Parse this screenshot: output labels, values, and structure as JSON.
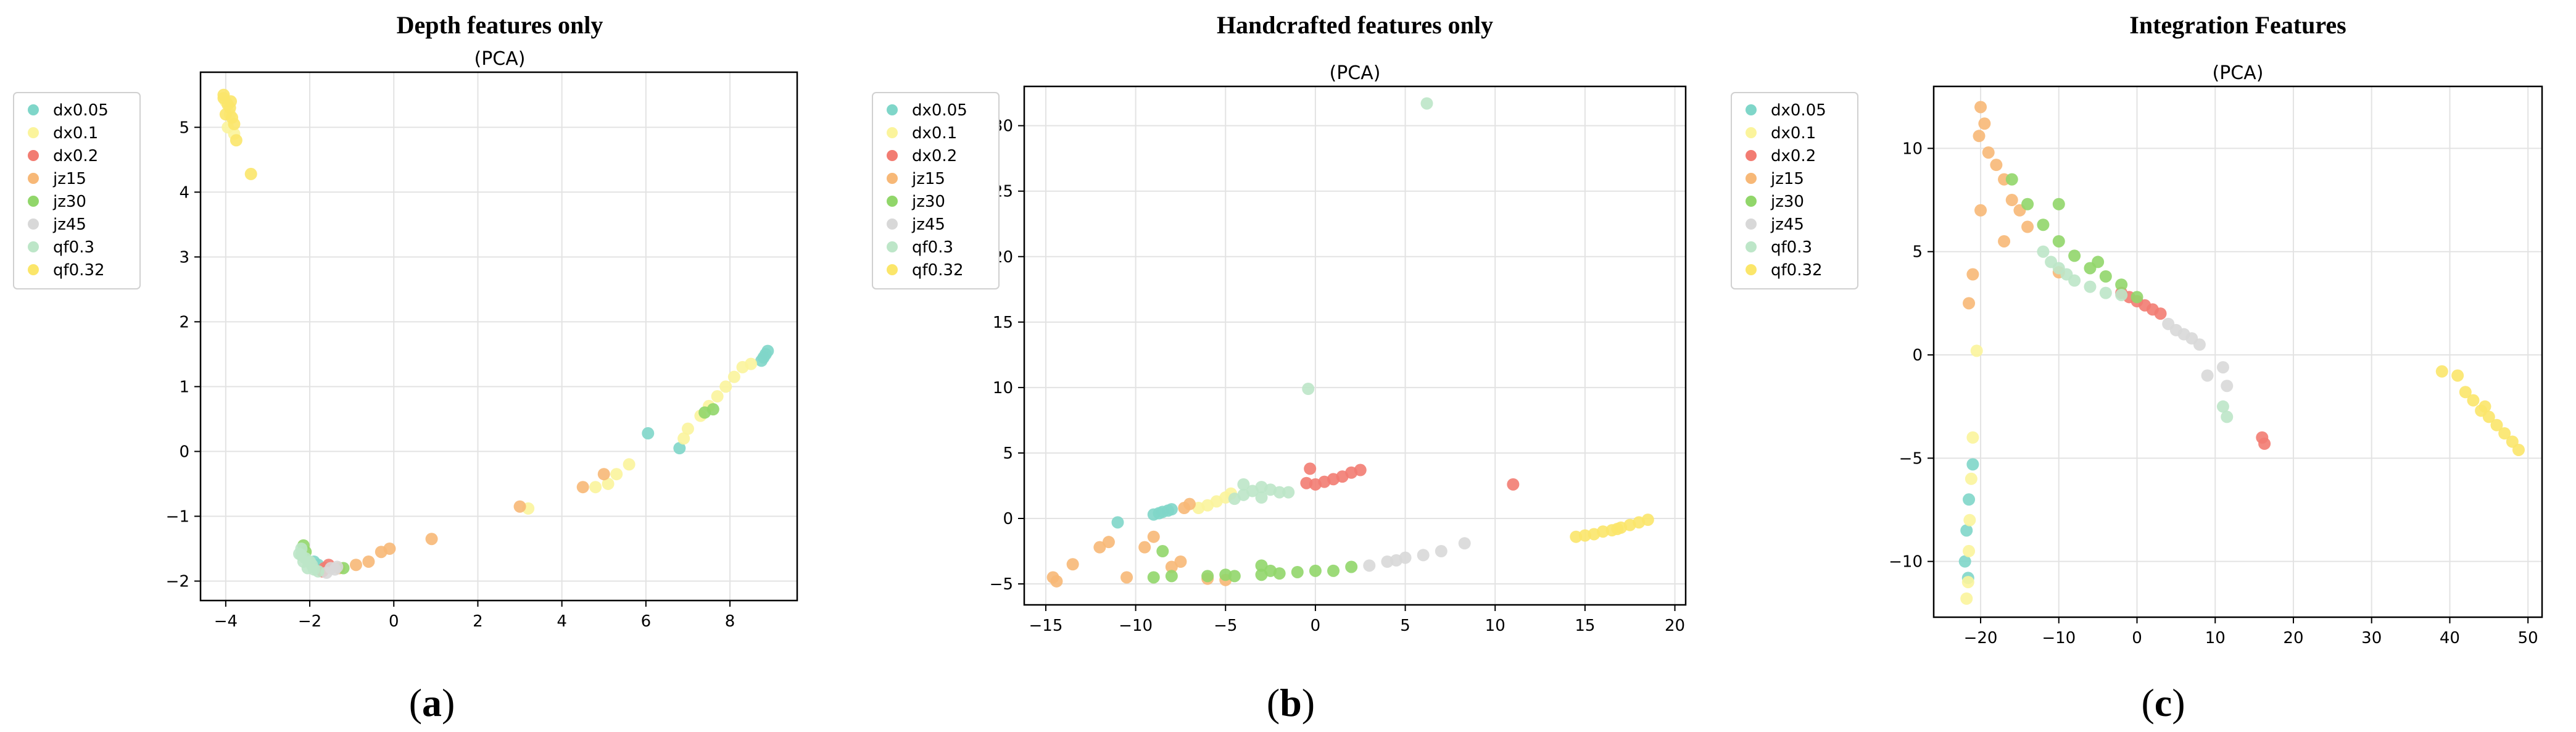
{
  "chart_data": [
    {
      "type": "scatter",
      "title": "Depth features only",
      "subtitle": "(PCA)",
      "caption": "a",
      "legend_placement": "outside-left",
      "grid": true,
      "xlim": [
        -4.6,
        9.6
      ],
      "ylim": [
        -2.3,
        5.85
      ],
      "xticks": [
        -4,
        -2,
        0,
        2,
        4,
        6,
        8
      ],
      "yticks": [
        -2,
        -1,
        0,
        1,
        2,
        3,
        4,
        5
      ],
      "series": [
        {
          "name": "dx0.05",
          "color": "#7fd6c9",
          "points": [
            [
              8.85,
              1.5
            ],
            [
              8.8,
              1.45
            ],
            [
              8.9,
              1.55
            ],
            [
              8.75,
              1.4
            ],
            [
              6.05,
              0.28
            ],
            [
              6.8,
              0.05
            ],
            [
              -1.9,
              -1.7
            ],
            [
              -1.8,
              -1.75
            ]
          ]
        },
        {
          "name": "dx0.1",
          "color": "#fbf49c",
          "points": [
            [
              7.3,
              0.55
            ],
            [
              7.5,
              0.7
            ],
            [
              7.7,
              0.85
            ],
            [
              7.9,
              1.0
            ],
            [
              8.1,
              1.15
            ],
            [
              8.3,
              1.3
            ],
            [
              8.5,
              1.35
            ],
            [
              7.0,
              0.35
            ],
            [
              6.9,
              0.2
            ],
            [
              5.6,
              -0.2
            ],
            [
              5.3,
              -0.35
            ],
            [
              5.1,
              -0.5
            ],
            [
              4.8,
              -0.55
            ],
            [
              3.2,
              -0.88
            ],
            [
              -4.0,
              5.4
            ],
            [
              -3.9,
              5.2
            ],
            [
              -3.95,
              5.0
            ],
            [
              -3.8,
              4.9
            ]
          ]
        },
        {
          "name": "dx0.2",
          "color": "#f27c72",
          "points": [
            [
              -1.65,
              -1.8
            ],
            [
              -1.55,
              -1.75
            ],
            [
              -1.7,
              -1.85
            ]
          ]
        },
        {
          "name": "jz15",
          "color": "#f7b877",
          "points": [
            [
              -0.1,
              -1.5
            ],
            [
              -0.3,
              -1.55
            ],
            [
              0.9,
              -1.35
            ],
            [
              3.0,
              -0.85
            ],
            [
              4.5,
              -0.55
            ],
            [
              5.0,
              -0.35
            ],
            [
              -0.6,
              -1.7
            ],
            [
              -0.9,
              -1.75
            ],
            [
              -1.3,
              -1.8
            ]
          ]
        },
        {
          "name": "jz30",
          "color": "#91d66a",
          "points": [
            [
              -2.15,
              -1.45
            ],
            [
              -2.1,
              -1.55
            ],
            [
              -1.2,
              -1.8
            ],
            [
              7.4,
              0.6
            ],
            [
              7.6,
              0.65
            ]
          ]
        },
        {
          "name": "jz45",
          "color": "#d8d8d8",
          "points": [
            [
              -1.5,
              -1.8
            ],
            [
              -1.4,
              -1.82
            ],
            [
              -1.6,
              -1.87
            ],
            [
              -1.35,
              -1.78
            ]
          ]
        },
        {
          "name": "qf0.3",
          "color": "#bde6c8",
          "points": [
            [
              -2.2,
              -1.6
            ],
            [
              -2.1,
              -1.65
            ],
            [
              -2.0,
              -1.7
            ],
            [
              -1.95,
              -1.75
            ],
            [
              -2.15,
              -1.7
            ],
            [
              -2.05,
              -1.8
            ],
            [
              -1.9,
              -1.82
            ],
            [
              -1.8,
              -1.85
            ],
            [
              -2.2,
              -1.5
            ],
            [
              -2.25,
              -1.58
            ]
          ]
        },
        {
          "name": "qf0.32",
          "color": "#fbe66a",
          "points": [
            [
              -4.05,
              5.45
            ],
            [
              -3.95,
              5.35
            ],
            [
              -3.9,
              5.3
            ],
            [
              -3.85,
              5.15
            ],
            [
              -4.0,
              5.2
            ],
            [
              -3.8,
              5.05
            ],
            [
              -3.75,
              4.8
            ],
            [
              -3.4,
              4.28
            ],
            [
              -4.05,
              5.5
            ],
            [
              -3.88,
              5.4
            ]
          ]
        }
      ]
    },
    {
      "type": "scatter",
      "title": "Handcrafted features only",
      "subtitle": "(PCA)",
      "caption": "b",
      "legend_placement": "outside-left",
      "grid": true,
      "xlim": [
        -16.2,
        20.6
      ],
      "ylim": [
        -6.6,
        33.0
      ],
      "xticks": [
        -15,
        -10,
        -5,
        0,
        5,
        10,
        15,
        20
      ],
      "yticks": [
        -5,
        0,
        5,
        10,
        15,
        20,
        25,
        30
      ],
      "series": [
        {
          "name": "dx0.05",
          "color": "#7fd6c9",
          "points": [
            [
              -11.0,
              -0.3
            ],
            [
              -9.0,
              0.3
            ],
            [
              -8.7,
              0.4
            ],
            [
              -8.5,
              0.5
            ],
            [
              -8.2,
              0.6
            ],
            [
              -8.0,
              0.7
            ]
          ]
        },
        {
          "name": "dx0.1",
          "color": "#fbf49c",
          "points": [
            [
              -6.0,
              1.0
            ],
            [
              -5.5,
              1.3
            ],
            [
              -5.0,
              1.6
            ],
            [
              -4.7,
              1.9
            ],
            [
              -6.5,
              0.8
            ]
          ]
        },
        {
          "name": "dx0.2",
          "color": "#f27c72",
          "points": [
            [
              -0.5,
              2.7
            ],
            [
              0.0,
              2.6
            ],
            [
              0.5,
              2.8
            ],
            [
              1.0,
              3.0
            ],
            [
              1.5,
              3.2
            ],
            [
              2.0,
              3.5
            ],
            [
              2.5,
              3.7
            ],
            [
              -0.3,
              3.8
            ],
            [
              11.0,
              2.6
            ]
          ]
        },
        {
          "name": "jz15",
          "color": "#f7b877",
          "points": [
            [
              -14.6,
              -4.5
            ],
            [
              -14.4,
              -4.8
            ],
            [
              -13.5,
              -3.5
            ],
            [
              -12.0,
              -2.2
            ],
            [
              -11.5,
              -1.8
            ],
            [
              -10.5,
              -4.5
            ],
            [
              -9.5,
              -2.2
            ],
            [
              -9.0,
              -1.4
            ],
            [
              -7.5,
              -3.3
            ],
            [
              -7.3,
              0.8
            ],
            [
              -7.0,
              1.1
            ],
            [
              -6.0,
              -4.6
            ],
            [
              -5.0,
              -4.7
            ],
            [
              -8.0,
              -3.7
            ]
          ]
        },
        {
          "name": "jz30",
          "color": "#91d66a",
          "points": [
            [
              -9.0,
              -4.5
            ],
            [
              -8.5,
              -2.5
            ],
            [
              -8.0,
              -4.4
            ],
            [
              -6.0,
              -4.4
            ],
            [
              -5.0,
              -4.3
            ],
            [
              -4.5,
              -4.4
            ],
            [
              -3.0,
              -4.3
            ],
            [
              -3.0,
              -3.6
            ],
            [
              -2.0,
              -4.2
            ],
            [
              -1.0,
              -4.1
            ],
            [
              0.0,
              -4.0
            ],
            [
              1.0,
              -4.0
            ],
            [
              2.0,
              -3.7
            ],
            [
              -2.5,
              -4.0
            ]
          ]
        },
        {
          "name": "jz45",
          "color": "#d8d8d8",
          "points": [
            [
              3.0,
              -3.6
            ],
            [
              4.0,
              -3.3
            ],
            [
              5.0,
              -3.0
            ],
            [
              6.0,
              -2.8
            ],
            [
              7.0,
              -2.5
            ],
            [
              8.3,
              -1.9
            ],
            [
              4.5,
              -3.2
            ]
          ]
        },
        {
          "name": "qf0.3",
          "color": "#bde6c8",
          "points": [
            [
              -4.5,
              1.5
            ],
            [
              -4.0,
              1.8
            ],
            [
              -3.5,
              2.1
            ],
            [
              -3.0,
              2.4
            ],
            [
              -2.5,
              2.2
            ],
            [
              -2.0,
              2.0
            ],
            [
              -1.5,
              2.0
            ],
            [
              -4.0,
              2.6
            ],
            [
              -3.0,
              1.6
            ],
            [
              6.2,
              31.7
            ],
            [
              -0.4,
              9.9
            ]
          ]
        },
        {
          "name": "qf0.32",
          "color": "#fbe66a",
          "points": [
            [
              14.5,
              -1.4
            ],
            [
              15.0,
              -1.3
            ],
            [
              15.5,
              -1.2
            ],
            [
              16.0,
              -1.0
            ],
            [
              16.5,
              -0.9
            ],
            [
              17.0,
              -0.7
            ],
            [
              17.5,
              -0.5
            ],
            [
              18.0,
              -0.3
            ],
            [
              18.5,
              -0.1
            ],
            [
              16.8,
              -0.8
            ]
          ]
        }
      ]
    },
    {
      "type": "scatter",
      "title": "Integration Features",
      "subtitle": "(PCA)",
      "caption": "c",
      "legend_placement": "outside-left",
      "grid": true,
      "xlim": [
        -26.0,
        51.8
      ],
      "ylim": [
        -12.7,
        13.0
      ],
      "xticks": [
        -20,
        -10,
        0,
        10,
        20,
        30,
        40,
        50
      ],
      "yticks": [
        -10,
        -5,
        0,
        5,
        10
      ],
      "series": [
        {
          "name": "dx0.05",
          "color": "#7fd6c9",
          "points": [
            [
              -21.0,
              -5.3
            ],
            [
              -21.5,
              -7.0
            ],
            [
              -21.8,
              -8.5
            ],
            [
              -22.0,
              -10.0
            ],
            [
              -21.6,
              -10.8
            ]
          ]
        },
        {
          "name": "dx0.1",
          "color": "#fbf49c",
          "points": [
            [
              -21.0,
              -4.0
            ],
            [
              -21.2,
              -6.0
            ],
            [
              -21.4,
              -8.0
            ],
            [
              -21.5,
              -9.5
            ],
            [
              -21.6,
              -11.0
            ],
            [
              -21.8,
              -11.8
            ],
            [
              -20.5,
              0.2
            ]
          ]
        },
        {
          "name": "dx0.2",
          "color": "#f27c72",
          "points": [
            [
              -2.0,
              3.0
            ],
            [
              -1.0,
              2.8
            ],
            [
              0.0,
              2.6
            ],
            [
              1.0,
              2.4
            ],
            [
              2.0,
              2.2
            ],
            [
              3.0,
              2.0
            ],
            [
              16.0,
              -4.0
            ],
            [
              16.3,
              -4.3
            ]
          ]
        },
        {
          "name": "jz15",
          "color": "#f7b877",
          "points": [
            [
              -20.0,
              12.0
            ],
            [
              -19.5,
              11.2
            ],
            [
              -20.2,
              10.6
            ],
            [
              -19.0,
              9.8
            ],
            [
              -18.0,
              9.2
            ],
            [
              -17.0,
              8.5
            ],
            [
              -16.0,
              7.5
            ],
            [
              -15.0,
              7.0
            ],
            [
              -14.0,
              6.2
            ],
            [
              -17.0,
              5.5
            ],
            [
              -20.0,
              7.0
            ],
            [
              -21.0,
              3.9
            ],
            [
              -21.5,
              2.5
            ],
            [
              -10.0,
              4.0
            ]
          ]
        },
        {
          "name": "jz30",
          "color": "#91d66a",
          "points": [
            [
              -14.0,
              7.3
            ],
            [
              -12.0,
              6.3
            ],
            [
              -10.0,
              5.5
            ],
            [
              -8.0,
              4.8
            ],
            [
              -6.0,
              4.2
            ],
            [
              -4.0,
              3.8
            ],
            [
              -2.0,
              3.4
            ],
            [
              0.0,
              2.8
            ],
            [
              -16.0,
              8.5
            ],
            [
              -10.0,
              7.3
            ],
            [
              -5.0,
              4.5
            ]
          ]
        },
        {
          "name": "jz45",
          "color": "#d8d8d8",
          "points": [
            [
              4.0,
              1.5
            ],
            [
              5.0,
              1.2
            ],
            [
              6.0,
              1.0
            ],
            [
              7.0,
              0.8
            ],
            [
              8.0,
              0.5
            ],
            [
              9.0,
              -1.0
            ],
            [
              11.0,
              -0.6
            ],
            [
              11.5,
              -1.5
            ]
          ]
        },
        {
          "name": "qf0.3",
          "color": "#bde6c8",
          "points": [
            [
              -12.0,
              5.0
            ],
            [
              -11.0,
              4.5
            ],
            [
              -10.0,
              4.2
            ],
            [
              -9.0,
              3.9
            ],
            [
              -8.0,
              3.6
            ],
            [
              -6.0,
              3.3
            ],
            [
              -4.0,
              3.0
            ],
            [
              -2.0,
              2.9
            ],
            [
              11.0,
              -2.5
            ],
            [
              11.5,
              -3.0
            ]
          ]
        },
        {
          "name": "qf0.32",
          "color": "#fbe66a",
          "points": [
            [
              39.0,
              -0.8
            ],
            [
              41.0,
              -1.0
            ],
            [
              42.0,
              -1.8
            ],
            [
              43.0,
              -2.2
            ],
            [
              44.0,
              -2.7
            ],
            [
              45.0,
              -3.0
            ],
            [
              46.0,
              -3.4
            ],
            [
              47.0,
              -3.8
            ],
            [
              48.0,
              -4.2
            ],
            [
              48.8,
              -4.6
            ],
            [
              44.5,
              -2.5
            ]
          ]
        }
      ]
    }
  ]
}
